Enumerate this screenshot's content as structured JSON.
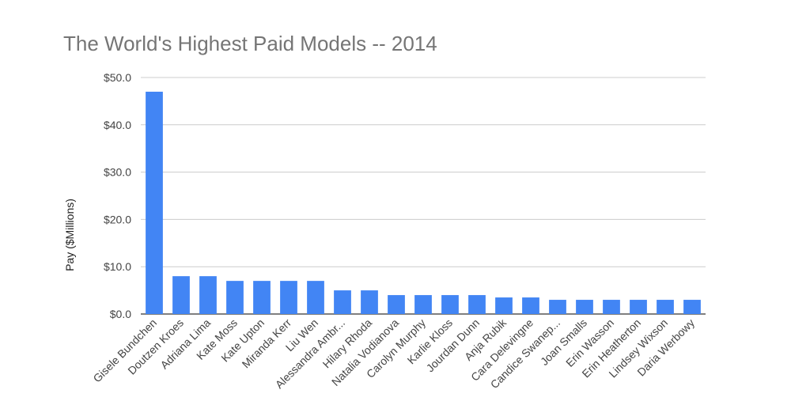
{
  "chart_data": {
    "type": "bar",
    "title": "The World's Highest Paid Models -- 2014",
    "xlabel": "",
    "ylabel": "Pay ($Millions)",
    "ylim": [
      0,
      50
    ],
    "yticks": [
      "$0.0",
      "$10.0",
      "$20.0",
      "$30.0",
      "$40.0",
      "$50.0"
    ],
    "grid": true,
    "legend": "none",
    "bar_color": "#4285f4",
    "categories": [
      "Gisele Bundchen",
      "Doutzen Kroes",
      "Adriana Lima",
      "Kate Moss",
      "Kate Upton",
      "Miranda Kerr",
      "Liu Wen",
      "Alessandra Ambr...",
      "Hilary Rhoda",
      "Natalia Vodianova",
      "Carolyn Murphy",
      "Karlie Kloss",
      "Jourdan Dunn",
      "Anja Rubik",
      "Cara Delevingne",
      "Candice Swanep...",
      "Joan Smalls",
      "Erin Wasson",
      "Erin Heatherton",
      "Lindsey Wixson",
      "Daria Werbowy"
    ],
    "values": [
      47,
      8,
      8,
      7,
      7,
      7,
      7,
      5,
      5,
      4,
      4,
      4,
      4,
      3.5,
      3.5,
      3,
      3,
      3,
      3,
      3,
      3
    ]
  }
}
